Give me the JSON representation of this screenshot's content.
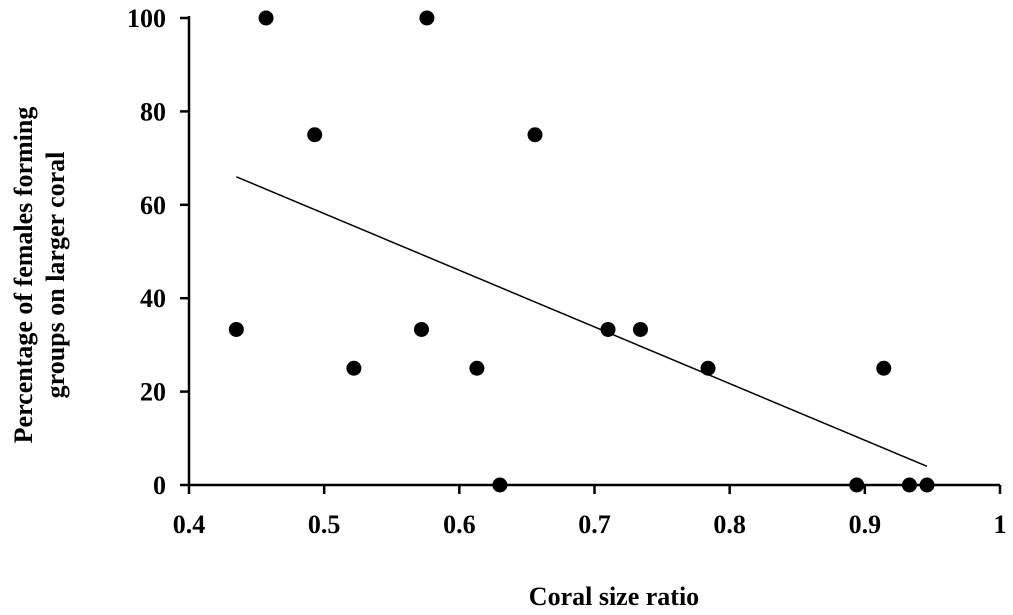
{
  "chart_data": {
    "type": "scatter",
    "title": "",
    "xlabel": "Coral size ratio",
    "ylabel_lines": [
      "Percentage of females forming",
      "groups on larger coral"
    ],
    "xlim": [
      0.4,
      1
    ],
    "ylim": [
      0,
      100
    ],
    "x_ticks": [
      0.4,
      0.5,
      0.6,
      0.7,
      0.8,
      0.9,
      1
    ],
    "x_tick_labels": [
      "0.4",
      "0.5",
      "0.6",
      "0.7",
      "0.8",
      "0.9",
      "1"
    ],
    "y_ticks": [
      0,
      20,
      40,
      60,
      80,
      100
    ],
    "y_tick_labels": [
      "0",
      "20",
      "40",
      "60",
      "80",
      "100"
    ],
    "grid": false,
    "legend": "none",
    "points": [
      {
        "x": 0.435,
        "y": 33.3
      },
      {
        "x": 0.457,
        "y": 100
      },
      {
        "x": 0.493,
        "y": 75
      },
      {
        "x": 0.522,
        "y": 25
      },
      {
        "x": 0.572,
        "y": 33.3
      },
      {
        "x": 0.576,
        "y": 100
      },
      {
        "x": 0.613,
        "y": 25
      },
      {
        "x": 0.63,
        "y": 0
      },
      {
        "x": 0.656,
        "y": 75
      },
      {
        "x": 0.71,
        "y": 33.3
      },
      {
        "x": 0.734,
        "y": 33.3
      },
      {
        "x": 0.784,
        "y": 25
      },
      {
        "x": 0.894,
        "y": 0
      },
      {
        "x": 0.914,
        "y": 25
      },
      {
        "x": 0.933,
        "y": 0
      },
      {
        "x": 0.946,
        "y": 0
      }
    ],
    "trendline": {
      "x": [
        0.435,
        0.946
      ],
      "y": [
        66,
        4
      ]
    },
    "colors": {
      "points": "#000000",
      "trendline": "#000000",
      "axes": "#000000"
    }
  }
}
